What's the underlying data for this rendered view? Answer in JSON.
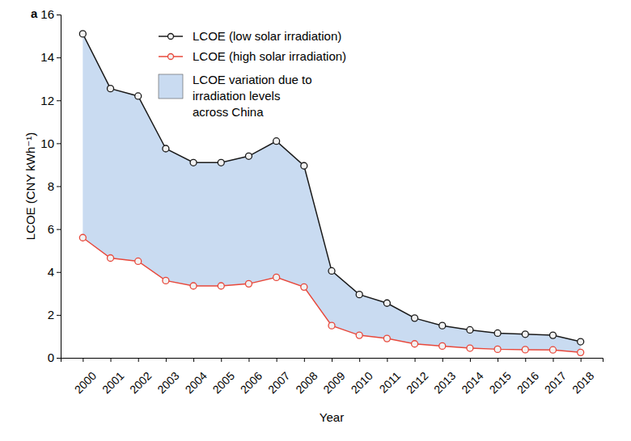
{
  "chart_data": {
    "type": "line",
    "panel_label": "a",
    "x_label": "Year",
    "y_label": "LCOE (CNY kWh⁻¹)",
    "categories": [
      "2000",
      "2001",
      "2002",
      "2003",
      "2004",
      "2005",
      "2006",
      "2007",
      "2008",
      "2009",
      "2010",
      "2011",
      "2012",
      "2013",
      "2014",
      "2015",
      "2016",
      "2017",
      "2018"
    ],
    "series": [
      {
        "name": "LCOE (low solar irradiation)",
        "color": "#1a1a1a",
        "marker": "circle",
        "values": [
          15.1,
          12.55,
          12.2,
          9.75,
          9.1,
          9.1,
          9.4,
          10.1,
          8.95,
          4.05,
          2.95,
          2.55,
          1.85,
          1.5,
          1.3,
          1.15,
          1.1,
          1.05,
          0.75
        ]
      },
      {
        "name": "LCOE (high solar irradiation)",
        "color": "#e8483b",
        "marker": "circle",
        "values": [
          5.6,
          4.65,
          4.5,
          3.6,
          3.35,
          3.35,
          3.45,
          3.75,
          3.3,
          1.5,
          1.05,
          0.9,
          0.65,
          0.55,
          0.45,
          0.4,
          0.38,
          0.37,
          0.25
        ]
      }
    ],
    "fill": {
      "label": [
        "LCOE variation due to",
        "irradiation levels",
        "across China"
      ],
      "color": "#c9dbf1"
    },
    "ylim": [
      0,
      16
    ],
    "yticks": [
      0,
      2,
      4,
      6,
      8,
      10,
      12,
      14,
      16
    ],
    "grid": false,
    "legend": "upper center"
  }
}
